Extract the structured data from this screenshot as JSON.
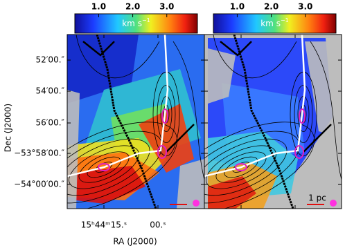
{
  "panels": [
    {
      "colorbar": {
        "range": [
          0.3,
          3.9
        ],
        "ticks": [
          {
            "value": 1,
            "label": "1.0"
          },
          {
            "value": 2,
            "label": "2.0"
          },
          {
            "value": 3,
            "label": "3.0"
          }
        ],
        "unit": "km s",
        "unit_exp": "−1"
      }
    },
    {
      "colorbar": {
        "range": [
          0.3,
          3.9
        ],
        "ticks": [
          {
            "value": 1,
            "label": "1.0"
          },
          {
            "value": 2,
            "label": "2.0"
          },
          {
            "value": 3,
            "label": "3.0"
          }
        ],
        "unit": "km s",
        "unit_exp": "−1"
      },
      "scale_bar": "1 pc"
    }
  ],
  "y_axis": {
    "label": "Dec (J2000)",
    "ticks": [
      "52′00.″",
      "54′00.″",
      "56′00.″",
      "−53°58′00.″",
      "−54°00′00.″"
    ]
  },
  "x_axis": {
    "label": "RA (J2000)",
    "ticks": [
      "15ʰ44ᵐ15.ˢ",
      "00.ˢ"
    ]
  }
}
